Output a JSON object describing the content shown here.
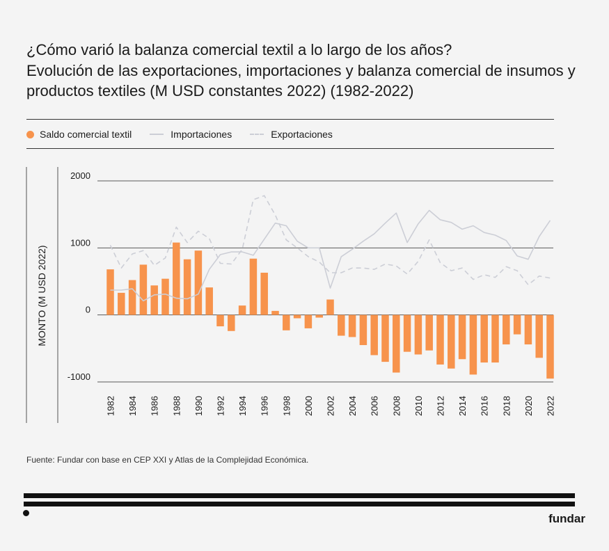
{
  "header": {
    "title": "¿Cómo varió la balanza comercial textil a lo largo de los años?",
    "subtitle": "Evolución de las exportaciones, importaciones y balanza comercial de insumos y productos textiles (M USD constantes 2022) (1982-2022)"
  },
  "legend": {
    "balance": "Saldo comercial textil",
    "imports": "Importaciones",
    "exports": "Exportaciones"
  },
  "colors": {
    "balance": "#f7934c",
    "imports": "#ccced6",
    "exports": "#ccced6",
    "grid": "#5a5a5a",
    "axis": "#333333"
  },
  "chart_data": {
    "type": "bar",
    "ylabel": "MONTO (M USD 2022)",
    "ylim": [
      -1000,
      2000
    ],
    "yticks": [
      2000,
      1000,
      0,
      -1000
    ],
    "xtick_labels": [
      "1982",
      "1984",
      "1986",
      "1988",
      "1990",
      "1992",
      "1994",
      "1996",
      "1998",
      "2000",
      "2002",
      "2004",
      "2006",
      "2008",
      "2010",
      "2012",
      "2014",
      "2016",
      "2018",
      "2020",
      "2022"
    ],
    "x": [
      1982,
      1983,
      1984,
      1985,
      1986,
      1987,
      1988,
      1989,
      1990,
      1991,
      1992,
      1993,
      1994,
      1995,
      1996,
      1997,
      1998,
      1999,
      2000,
      2001,
      2002,
      2003,
      2004,
      2005,
      2006,
      2007,
      2008,
      2009,
      2010,
      2011,
      2012,
      2013,
      2014,
      2015,
      2016,
      2017,
      2018,
      2019,
      2020,
      2021,
      2022
    ],
    "series": [
      {
        "name": "Saldo comercial textil",
        "type": "bar",
        "values": [
          680,
          330,
          520,
          750,
          440,
          540,
          1080,
          830,
          960,
          410,
          -170,
          -240,
          140,
          840,
          630,
          60,
          -230,
          -50,
          -200,
          -40,
          230,
          -310,
          -330,
          -450,
          -600,
          -700,
          -860,
          -550,
          -590,
          -530,
          -740,
          -800,
          -660,
          -890,
          -710,
          -710,
          -440,
          -290,
          -440,
          -640,
          -950
        ]
      },
      {
        "name": "Importaciones",
        "type": "line",
        "values": [
          370,
          370,
          390,
          210,
          300,
          310,
          250,
          240,
          310,
          680,
          900,
          940,
          940,
          890,
          1130,
          1370,
          1330,
          1100,
          1000,
          1000,
          400,
          870,
          980,
          1100,
          1210,
          1370,
          1520,
          1080,
          1360,
          1560,
          1420,
          1380,
          1280,
          1330,
          1230,
          1190,
          1110,
          880,
          830,
          1170,
          1410
        ]
      },
      {
        "name": "Exportaciones",
        "type": "line",
        "values": [
          1040,
          700,
          910,
          960,
          740,
          850,
          1310,
          1080,
          1250,
          1140,
          770,
          760,
          980,
          1720,
          1780,
          1490,
          1120,
          1000,
          870,
          790,
          630,
          630,
          700,
          700,
          680,
          760,
          730,
          610,
          800,
          1120,
          780,
          660,
          700,
          530,
          600,
          560,
          720,
          660,
          450,
          580,
          550
        ]
      }
    ]
  },
  "footer": {
    "source": "Fuente: Fundar con base en CEP XXI y Atlas de la Complejidad Económica.",
    "brand": "fundar"
  }
}
